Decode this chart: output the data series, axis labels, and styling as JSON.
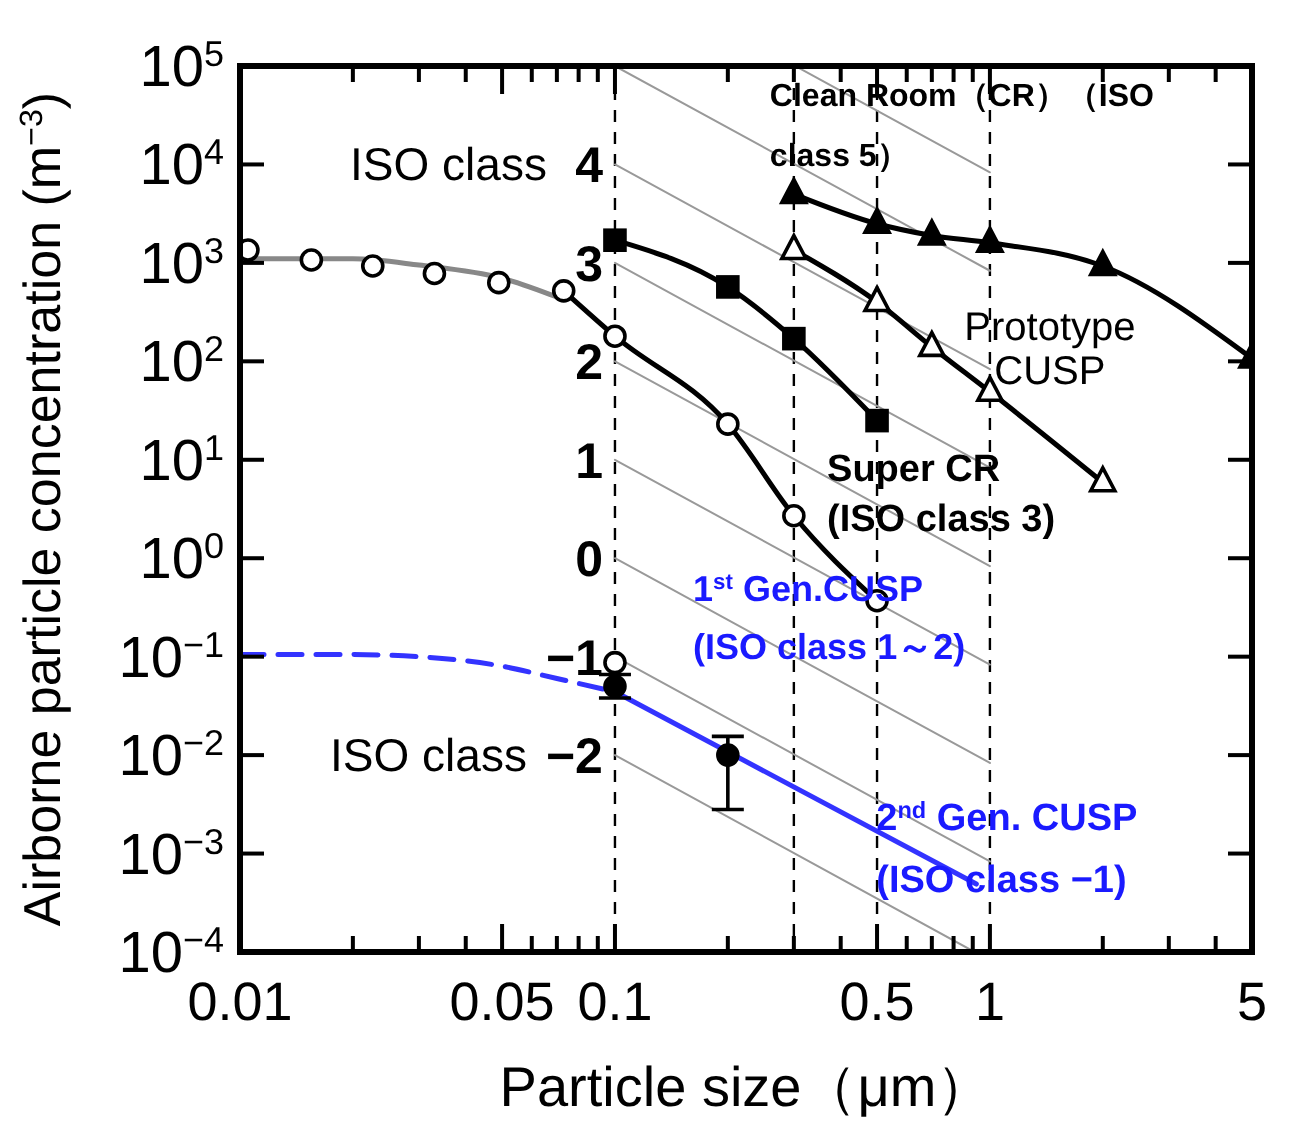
{
  "chart_data": {
    "type": "line",
    "xlabel": "Particle size（μm）",
    "ylabel": "Airborne particle concentration (m$^{−3}$)",
    "log": "xy",
    "grid": false,
    "legend": false,
    "xlim": [
      0.01,
      5
    ],
    "ylim": [
      0.0001,
      100000
    ],
    "xticks": [
      0.01,
      {
        "value": 0.02,
        "label": null
      },
      {
        "value": 0.03,
        "label": null
      },
      {
        "value": 0.04,
        "label": null
      },
      0.05,
      {
        "value": 0.06,
        "label": null
      },
      {
        "value": 0.07,
        "label": null
      },
      {
        "value": 0.08,
        "label": null
      },
      {
        "value": 0.09,
        "label": null
      },
      0.1,
      {
        "value": 0.2,
        "label": null
      },
      {
        "value": 0.3,
        "label": null
      },
      {
        "value": 0.4,
        "label": null
      },
      0.5,
      {
        "value": 0.6,
        "label": null
      },
      {
        "value": 0.7,
        "label": null
      },
      {
        "value": 0.8,
        "label": null
      },
      {
        "value": 0.9,
        "label": null
      },
      1,
      {
        "value": 2,
        "label": null
      },
      {
        "value": 3,
        "label": null
      },
      {
        "value": 4,
        "label": null
      },
      5
    ],
    "yticks": [
      {
        "value": 0.0001,
        "label": "10$^{−4}$"
      },
      {
        "value": 0.001,
        "label": "10$^{−3}$"
      },
      {
        "value": 0.01,
        "label": "10$^{−2}$"
      },
      {
        "value": 0.1,
        "label": "10$^{−1}$"
      },
      {
        "value": 1,
        "label": "10$^{0}$"
      },
      {
        "value": 10,
        "label": "10$^{1}$"
      },
      {
        "value": 100,
        "label": "10$^{2}$"
      },
      {
        "value": 1000,
        "label": "10$^{3}$"
      },
      {
        "value": 10000,
        "label": "10$^{4}$"
      },
      {
        "value": 100000,
        "label": "10$^{5}$"
      }
    ],
    "ref_lines": [
      {
        "axis": "x",
        "value": 0.1,
        "line_style": "dashed"
      },
      {
        "axis": "x",
        "value": 0.3,
        "line_style": "dashed"
      },
      {
        "axis": "x",
        "value": 0.5,
        "line_style": "dashed"
      },
      {
        "axis": "x",
        "value": 1,
        "line_style": "dashed"
      }
    ],
    "series": [
      {
        "color": "#999999",
        "marker": "none",
        "x": [
          0.31,
          1
        ],
        "values": [
          95100,
          8318
        ]
      },
      {
        "color": "#999999",
        "marker": "none",
        "x": [
          0.1,
          1
        ],
        "values": [
          100000,
          832
        ]
      },
      {
        "name": "4",
        "color": "#999999",
        "marker": "none",
        "x": [
          0.1,
          1
        ],
        "values": [
          10000,
          83.2
        ]
      },
      {
        "name": "3",
        "color": "#999999",
        "marker": "none",
        "x": [
          0.1,
          1
        ],
        "values": [
          1000,
          8.32
        ]
      },
      {
        "name": "2",
        "color": "#999999",
        "marker": "none",
        "x": [
          0.1,
          1
        ],
        "values": [
          100,
          0.832
        ]
      },
      {
        "name": "1",
        "color": "#999999",
        "marker": "none",
        "x": [
          0.1,
          1
        ],
        "values": [
          10,
          0.0832
        ]
      },
      {
        "name": "0",
        "color": "#999999",
        "marker": "none",
        "x": [
          0.1,
          1
        ],
        "values": [
          1,
          0.00832
        ]
      },
      {
        "name": "−1",
        "color": "#999999",
        "marker": "none",
        "x": [
          0.1,
          1
        ],
        "values": [
          0.1,
          0.000832
        ]
      },
      {
        "name": "−2",
        "color": "#999999",
        "marker": "none",
        "x": [
          0.1,
          0.91
        ],
        "values": [
          0.01,
          0.0001
        ]
      },
      {
        "color": "#888888",
        "marker": "none",
        "x": [
          0.01,
          0.02,
          0.03,
          0.05,
          0.07
        ],
        "values": [
          1100,
          1100,
          950,
          700,
          450
        ]
      },
      {
        "color": "#3333ff",
        "marker": "none",
        "line_style": "dashed",
        "x": [
          0.01,
          0.02,
          0.03,
          0.05,
          0.07,
          0.1
        ],
        "values": [
          0.105,
          0.105,
          0.1,
          0.08,
          0.06,
          0.044
        ]
      },
      {
        "color": "#3333ff",
        "marker": "none",
        "x": [
          0.1,
          0.92
        ],
        "values": [
          0.044,
          0.00049
        ]
      },
      {
        "color": "#000000",
        "marker": "none",
        "x": [
          0.073,
          0.1,
          0.2,
          0.3,
          0.5
        ],
        "values": [
          520,
          180,
          23,
          2.7,
          0.37
        ]
      },
      {
        "color": "#000000",
        "marker": "square",
        "x": [
          0.1,
          0.2,
          0.3,
          0.5
        ],
        "values": [
          1700,
          570,
          170,
          25
        ]
      },
      {
        "color": "#000000",
        "marker": "triangle",
        "x": [
          0.3,
          0.5,
          0.7,
          1,
          2,
          5
        ],
        "values": [
          5000,
          2500,
          1900,
          1600,
          930,
          107
        ]
      },
      {
        "color": "#000000",
        "marker": "none",
        "x": [
          0.3,
          0.5,
          0.7,
          1,
          2
        ],
        "values": [
          1350,
          400,
          140,
          49,
          5.9
        ]
      },
      {
        "type": "scatter",
        "color": "#ffffff",
        "marker": "triangle",
        "x": [
          0.3,
          0.5,
          0.7,
          1,
          2
        ],
        "values": [
          1350,
          400,
          140,
          49,
          5.9
        ]
      },
      {
        "type": "scatter",
        "color": "#ffffff",
        "marker": "circle",
        "x": [
          0.0105,
          0.0155,
          0.0226,
          0.033,
          0.049,
          0.073,
          0.1,
          0.2,
          0.3,
          0.5,
          0.1
        ],
        "values": [
          1350,
          1070,
          930,
          780,
          630,
          520,
          180,
          23,
          2.7,
          0.37,
          0.087
        ]
      },
      {
        "type": "scatter",
        "color": "#000000",
        "marker": "circle",
        "x": [
          0.1,
          0.2
        ],
        "values": [
          0.05,
          0.01
        ],
        "errors": [
          [
            0.038,
            0.066
          ],
          [
            0.0028,
            0.0155
          ]
        ]
      }
    ],
    "annotations": [
      {
        "text": "ISO class",
        "x": 0.1,
        "y": 10000
      },
      {
        "text": "ISO class",
        "x": 0.1,
        "y": 0.01
      },
      {
        "text": "Clean Room（CR）（ISO class 5）",
        "x": 0.3,
        "y": 5000
      },
      {
        "text": "Prototype CUSP",
        "x": 1,
        "y": 49
      },
      {
        "text": "Super CR (ISO class 3)",
        "x": 0.5,
        "y": 25
      },
      {
        "text": "1$^{st}$ Gen.CUSP (ISO class 1～2)",
        "x": 0.5,
        "y": 0.37
      },
      {
        "text": "2$^{nd}$ Gen. CUSP (ISO class −1)",
        "x": 0.92,
        "y": 0.00049
      }
    ]
  }
}
